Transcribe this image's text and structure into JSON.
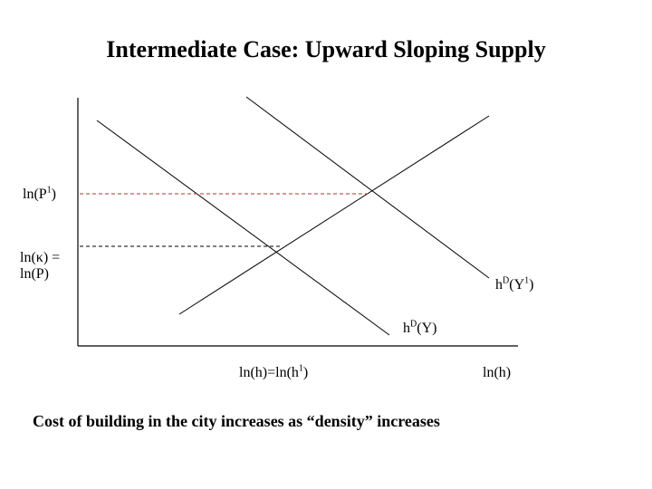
{
  "title": "Intermediate Case:  Upward Sloping Supply",
  "caption": "Cost of building in the city increases as “density” increases",
  "labels": {
    "p1_main": "ln(P",
    "p1_sup": "1",
    "p1_end": ")",
    "kappa_line1": "ln(κ) =",
    "kappa_line2": "ln(P)",
    "hdy1_main": "h",
    "hdy1_sup": "D",
    "hdy1_end": "(Y",
    "hdy1_sup2": "1",
    "hdy1_close": ")",
    "hdy_main": "h",
    "hdy_sup": "D",
    "hdy_end": "(Y)",
    "hx_main": "ln(h)=ln(h",
    "hx_sup": "1",
    "hx_end": ")",
    "xaxis": "ln(h)"
  },
  "colors": {
    "p1_guide": "#b03030",
    "kappa_guide": "#000000",
    "lines": "#000000"
  }
}
